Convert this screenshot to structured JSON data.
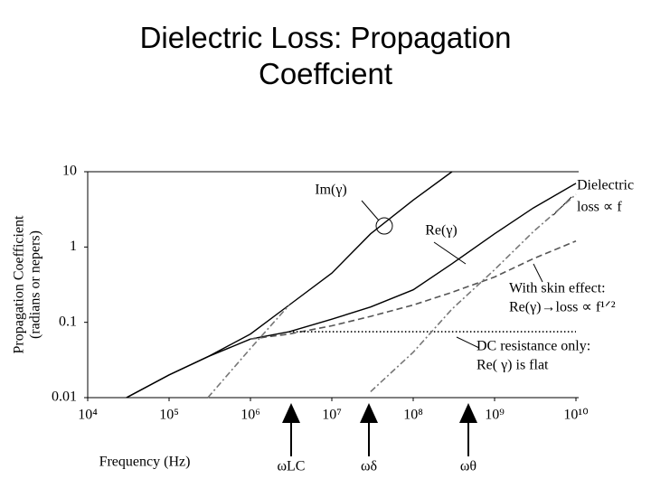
{
  "chart_data": {
    "type": "line",
    "title": "Dielectric Loss: Propagation Coeffcient",
    "x_label": "Frequency (Hz)",
    "y_label": [
      "Propagation Coefficient",
      "(radians or nepers)"
    ],
    "log_x": true,
    "log_y": true,
    "xlim": [
      10000,
      10000000000
    ],
    "ylim": [
      0.01,
      10
    ],
    "xticks": [
      {
        "value": 10000,
        "label": "10⁴"
      },
      {
        "value": 100000,
        "label": "10⁵"
      },
      {
        "value": 1000000,
        "label": "10⁶"
      },
      {
        "value": 10000000,
        "label": "10⁷"
      },
      {
        "value": 100000000,
        "label": "10⁸"
      },
      {
        "value": 1000000000,
        "label": "10⁹"
      },
      {
        "value": 10000000000,
        "label": "10¹⁰"
      }
    ],
    "yticks": [
      10,
      1,
      0.1,
      0.01
    ],
    "x": [
      30000,
      100000,
      300000,
      1000000,
      3000000,
      10000000,
      30000000,
      100000000,
      300000000,
      1000000000,
      3000000000,
      10000000000
    ],
    "series": [
      {
        "color": "#000000",
        "style": "solid",
        "values": [
          0.01,
          0.02,
          0.035,
          0.07,
          0.17,
          0.45,
          1.5,
          4.2,
          10,
          null,
          null,
          null
        ]
      },
      {
        "color": "#000000",
        "style": "solid",
        "values": [
          0.01,
          0.02,
          0.035,
          0.06,
          0.075,
          0.11,
          0.16,
          0.27,
          0.6,
          1.5,
          3.3,
          7
        ]
      },
      {
        "color": "#555555",
        "style": "dashed",
        "values": [
          null,
          null,
          null,
          0.06,
          0.07,
          0.09,
          0.12,
          0.17,
          0.25,
          0.4,
          0.7,
          1.2
        ]
      },
      {
        "color": "#000000",
        "style": "dotted",
        "values": [
          null,
          null,
          null,
          null,
          0.075,
          0.075,
          0.075,
          0.075,
          0.075,
          0.075,
          0.075,
          0.075
        ]
      },
      {
        "color": "#777777",
        "style": "dashdot",
        "values": [
          null,
          null,
          null,
          null,
          null,
          null,
          0.012,
          0.04,
          0.15,
          0.5,
          1.6,
          5
        ]
      },
      {
        "color": "#777777",
        "style": "dashdot",
        "values": [
          null,
          null,
          0.01,
          0.045,
          0.17,
          null,
          null,
          null,
          null,
          null,
          null,
          null
        ]
      }
    ],
    "annotations": [
      "Im(γ)",
      "Re(γ)",
      "Dielectric",
      "loss ∝ f",
      "With skin effect:",
      "Re(γ)→loss ∝ f¹ᐟ²",
      "DC resistance only:",
      "Re( γ) is flat",
      "ωLC",
      "ωδ",
      "ωθ"
    ]
  }
}
